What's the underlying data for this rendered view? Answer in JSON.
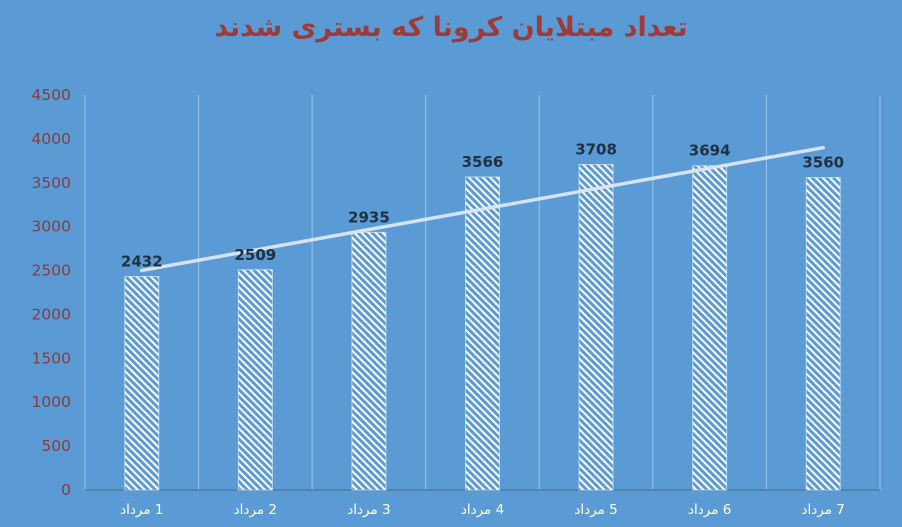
{
  "colors": {
    "background": "#5B9BD5",
    "title": "#9E3A38",
    "axis_labels": "#8E3A36",
    "data_labels": "#203142",
    "x_labels": "#FFFFFF",
    "gridline": "rgba(235,243,250,0.45)",
    "axis_line": "rgba(70,95,120,0.65)",
    "bar_hatch": "#FFFFFF",
    "bar_outline": "rgba(255,255,255,0.55)",
    "trendline": "#DCE6F4"
  },
  "chart_data": {
    "type": "bar",
    "title": "تعداد مبتلایان کرونا که بستری شدند",
    "categories": [
      "1 مرداد",
      "2 مرداد",
      "3 مرداد",
      "4 مرداد",
      "5 مرداد",
      "6 مرداد",
      "7 مرداد"
    ],
    "values": [
      2432,
      2509,
      2935,
      3566,
      3708,
      3694,
      3560
    ],
    "data_labels": [
      "2432",
      "2509",
      "2935",
      "3566",
      "3708",
      "3694",
      "3560"
    ],
    "xlabel": "",
    "ylabel": "",
    "ylim": [
      0,
      4500
    ],
    "ytick_step": 500,
    "yticks": [
      "0",
      "500",
      "1000",
      "1500",
      "2000",
      "2500",
      "3000",
      "3500",
      "4000",
      "4500"
    ],
    "grid": "vertical",
    "legend": "none",
    "bar_style": "white-diagonal-hatch",
    "trendline": true,
    "text_direction": "rtl"
  }
}
